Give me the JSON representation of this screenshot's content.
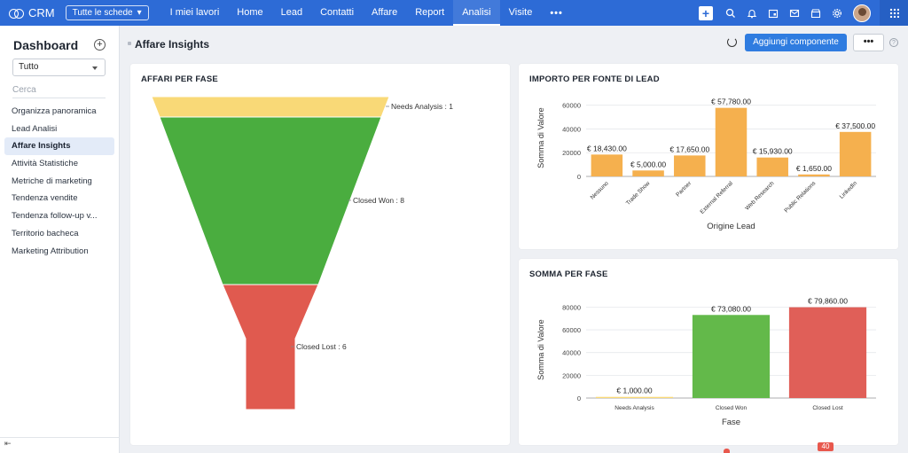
{
  "app": {
    "name": "CRM"
  },
  "topbar": {
    "tab_select": "Tutte le schede",
    "nav": [
      "I miei lavori",
      "Home",
      "Lead",
      "Contatti",
      "Affare",
      "Report",
      "Analisi",
      "Visite"
    ],
    "active_nav": "Analisi",
    "more": "•••",
    "icons": [
      "plus-icon",
      "search-icon",
      "bell-icon",
      "calendar-icon",
      "mail-icon",
      "store-icon",
      "gear-icon",
      "avatar",
      "app-grid-icon"
    ]
  },
  "sidebar": {
    "title": "Dashboard",
    "filter_value": "Tutto",
    "search_placeholder": "Cerca",
    "items": [
      "Organizza panoramica",
      "Lead Analisi",
      "Affare Insights",
      "Attività Statistiche",
      "Metriche di marketing",
      "Tendenza vendite",
      "Tendenza follow-up v...",
      "Territorio bacheca",
      "Marketing Attribution"
    ],
    "active_item": "Affare Insights",
    "collapse_icon": "collapse-icon"
  },
  "header": {
    "title": "Affare Insights",
    "add_component": "Aggiungi componente",
    "more": "•••",
    "help": "?"
  },
  "cards": {
    "funnel_title": "AFFARI PER FASE",
    "lead_source_title": "IMPORTO PER FONTE DI LEAD",
    "stage_sum_title": "SOMMA PER FASE"
  },
  "notifications": {
    "badge": "40"
  },
  "chart_data": [
    {
      "type": "funnel",
      "title": "AFFARI PER FASE",
      "categories": [
        "Needs Analysis",
        "Closed Won",
        "Closed Lost"
      ],
      "values": [
        1,
        8,
        6
      ],
      "labels": [
        "Needs Analysis : 1",
        "Closed Won : 8",
        "Closed Lost : 6"
      ],
      "colors": [
        "#f9d977",
        "#4aad3f",
        "#e05a4f"
      ]
    },
    {
      "type": "bar",
      "title": "IMPORTO PER FONTE DI LEAD",
      "xlabel": "Origine Lead",
      "ylabel": "Somma di Valore",
      "categories": [
        "Nessuno",
        "Trade Show",
        "Partner",
        "External Referral",
        "Web Research",
        "Public Relations",
        "LinkedIn"
      ],
      "values": [
        18430,
        5000,
        17650,
        57780,
        15930,
        1650,
        37500
      ],
      "data_labels": [
        "€ 18,430.00",
        "€ 5,000.00",
        "€ 17,650.00",
        "€ 57,780.00",
        "€ 15,930.00",
        "€ 1,650.00",
        "€ 37,500.00"
      ],
      "yticks": [
        0,
        20000,
        40000,
        60000
      ],
      "ytick_labels": [
        "0",
        "20000",
        "40000",
        "60000"
      ],
      "ylim": [
        0,
        65000
      ],
      "color": "#f5b04e"
    },
    {
      "type": "bar",
      "title": "SOMMA PER FASE",
      "xlabel": "Fase",
      "ylabel": "Somma di Valore",
      "categories": [
        "Needs Analysis",
        "Closed Won",
        "Closed Lost"
      ],
      "values": [
        1000,
        73080,
        79860
      ],
      "data_labels": [
        "€ 1,000.00",
        "€ 73,080.00",
        "€ 79,860.00"
      ],
      "yticks": [
        0,
        20000,
        40000,
        60000,
        80000
      ],
      "ytick_labels": [
        "0",
        "20000",
        "40000",
        "60000",
        "80000"
      ],
      "ylim": [
        0,
        85000
      ],
      "colors": [
        "#f9d977",
        "#63b94a",
        "#e05f58"
      ]
    }
  ]
}
